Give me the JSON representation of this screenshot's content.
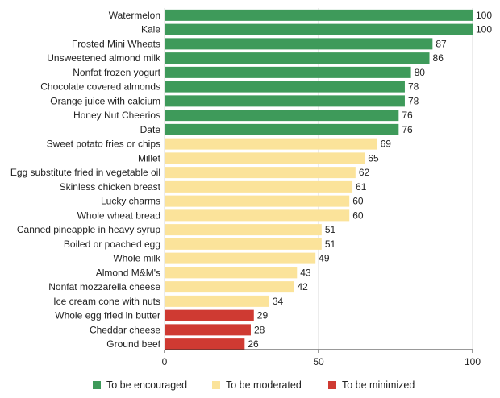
{
  "chart_data": {
    "type": "bar",
    "orientation": "horizontal",
    "categories": [
      "Watermelon",
      "Kale",
      "Frosted Mini Wheats",
      "Unsweetened almond milk",
      "Nonfat frozen yogurt",
      "Chocolate covered almonds",
      "Orange juice with calcium",
      "Honey Nut Cheerios",
      "Date",
      "Sweet potato fries or chips",
      "Millet",
      "Egg substitute fried in vegetable oil",
      "Skinless chicken breast",
      "Lucky charms",
      "Whole wheat bread",
      "Canned pineapple in heavy syrup",
      "Boiled or poached egg",
      "Whole milk",
      "Almond M&M's",
      "Nonfat mozzarella cheese",
      "Ice cream cone with nuts",
      "Whole egg fried in butter",
      "Cheddar cheese",
      "Ground beef"
    ],
    "values": [
      100,
      100,
      87,
      86,
      80,
      78,
      78,
      76,
      76,
      69,
      65,
      62,
      61,
      60,
      60,
      51,
      51,
      49,
      43,
      42,
      34,
      29,
      28,
      26
    ],
    "groups": [
      "encouraged",
      "encouraged",
      "encouraged",
      "encouraged",
      "encouraged",
      "encouraged",
      "encouraged",
      "encouraged",
      "encouraged",
      "moderated",
      "moderated",
      "moderated",
      "moderated",
      "moderated",
      "moderated",
      "moderated",
      "moderated",
      "moderated",
      "moderated",
      "moderated",
      "moderated",
      "minimized",
      "minimized",
      "minimized"
    ],
    "xlim": [
      0,
      100
    ],
    "xticks": [
      "0",
      "50",
      "100"
    ],
    "grid": "vertical",
    "legend_position": "bottom",
    "legend": [
      {
        "key": "encouraged",
        "label": "To be encouraged",
        "color": "#3e9a5a"
      },
      {
        "key": "moderated",
        "label": "To be moderated",
        "color": "#fbe39a"
      },
      {
        "key": "minimized",
        "label": "To be minimized",
        "color": "#cf3a32"
      }
    ]
  }
}
